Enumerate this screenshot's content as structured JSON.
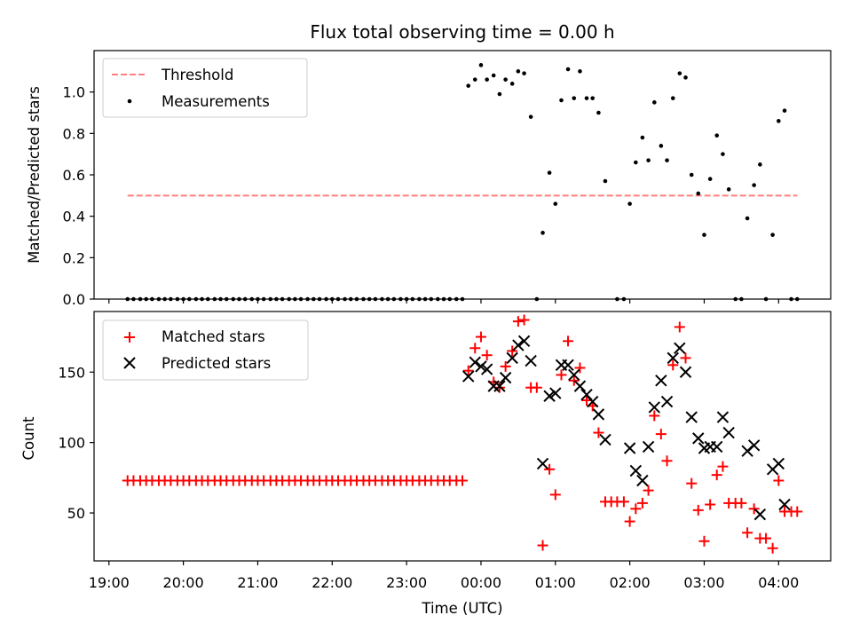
{
  "chart_data": [
    {
      "type": "scatter",
      "title": "Flux total observing time = 0.00 h",
      "xlabel": "",
      "ylabel": "Matched/Predicted stars",
      "ylim": [
        0,
        1.2
      ],
      "yticks": [
        0.0,
        0.2,
        0.4,
        0.6,
        0.8,
        1.0
      ],
      "ytick_labels": [
        "0.0",
        "0.2",
        "0.4",
        "0.6",
        "0.8",
        "1.0"
      ],
      "xlim_hours": [
        18.8,
        28.7
      ],
      "legend": "top-left",
      "legend_entries": [
        "Threshold",
        "Measurements"
      ],
      "threshold": {
        "name": "Threshold",
        "y": 0.5,
        "x_range_hours": [
          19.25,
          28.25
        ],
        "color": "#ff7f7f",
        "style": "dashed"
      },
      "series": [
        {
          "name": "Measurements",
          "color": "#000000",
          "marker": "dot",
          "points": [
            [
              19.25,
              0
            ],
            [
              19.33,
              0
            ],
            [
              19.42,
              0
            ],
            [
              19.5,
              0
            ],
            [
              19.58,
              0
            ],
            [
              19.67,
              0
            ],
            [
              19.75,
              0
            ],
            [
              19.83,
              0
            ],
            [
              19.92,
              0
            ],
            [
              20.0,
              0
            ],
            [
              20.08,
              0
            ],
            [
              20.17,
              0
            ],
            [
              20.25,
              0
            ],
            [
              20.33,
              0
            ],
            [
              20.42,
              0
            ],
            [
              20.5,
              0
            ],
            [
              20.58,
              0
            ],
            [
              20.67,
              0
            ],
            [
              20.75,
              0
            ],
            [
              20.83,
              0
            ],
            [
              20.92,
              0
            ],
            [
              21.0,
              0
            ],
            [
              21.08,
              0
            ],
            [
              21.17,
              0
            ],
            [
              21.25,
              0
            ],
            [
              21.33,
              0
            ],
            [
              21.42,
              0
            ],
            [
              21.5,
              0
            ],
            [
              21.58,
              0
            ],
            [
              21.67,
              0
            ],
            [
              21.75,
              0
            ],
            [
              21.83,
              0
            ],
            [
              21.92,
              0
            ],
            [
              22.0,
              0
            ],
            [
              22.08,
              0
            ],
            [
              22.17,
              0
            ],
            [
              22.25,
              0
            ],
            [
              22.33,
              0
            ],
            [
              22.42,
              0
            ],
            [
              22.5,
              0
            ],
            [
              22.58,
              0
            ],
            [
              22.67,
              0
            ],
            [
              22.75,
              0
            ],
            [
              22.83,
              0
            ],
            [
              22.92,
              0
            ],
            [
              23.0,
              0
            ],
            [
              23.08,
              0
            ],
            [
              23.17,
              0
            ],
            [
              23.25,
              0
            ],
            [
              23.33,
              0
            ],
            [
              23.42,
              0
            ],
            [
              23.5,
              0
            ],
            [
              23.58,
              0
            ],
            [
              23.67,
              0
            ],
            [
              23.75,
              0
            ],
            [
              23.83,
              1.03
            ],
            [
              23.92,
              1.06
            ],
            [
              24.0,
              1.13
            ],
            [
              24.08,
              1.06
            ],
            [
              24.17,
              1.08
            ],
            [
              24.25,
              0.99
            ],
            [
              24.33,
              1.06
            ],
            [
              24.42,
              1.04
            ],
            [
              24.5,
              1.1
            ],
            [
              24.58,
              1.09
            ],
            [
              24.67,
              0.88
            ],
            [
              24.75,
              0.0
            ],
            [
              24.83,
              0.32
            ],
            [
              24.92,
              0.61
            ],
            [
              25.0,
              0.46
            ],
            [
              25.08,
              0.96
            ],
            [
              25.17,
              1.11
            ],
            [
              25.25,
              0.97
            ],
            [
              25.33,
              1.1
            ],
            [
              25.42,
              0.97
            ],
            [
              25.5,
              0.97
            ],
            [
              25.58,
              0.9
            ],
            [
              25.67,
              0.57
            ],
            [
              25.83,
              0.0
            ],
            [
              25.92,
              0.0
            ],
            [
              26.0,
              0.46
            ],
            [
              26.08,
              0.66
            ],
            [
              26.17,
              0.78
            ],
            [
              26.25,
              0.67
            ],
            [
              26.33,
              0.95
            ],
            [
              26.42,
              0.74
            ],
            [
              26.5,
              0.67
            ],
            [
              26.58,
              0.97
            ],
            [
              26.67,
              1.09
            ],
            [
              26.75,
              1.07
            ],
            [
              26.83,
              0.6
            ],
            [
              26.92,
              0.51
            ],
            [
              27.0,
              0.31
            ],
            [
              27.08,
              0.58
            ],
            [
              27.17,
              0.79
            ],
            [
              27.25,
              0.7
            ],
            [
              27.33,
              0.53
            ],
            [
              27.42,
              0.0
            ],
            [
              27.5,
              0.0
            ],
            [
              27.58,
              0.39
            ],
            [
              27.67,
              0.55
            ],
            [
              27.75,
              0.65
            ],
            [
              27.83,
              0.0
            ],
            [
              27.92,
              0.31
            ],
            [
              28.0,
              0.86
            ],
            [
              28.08,
              0.91
            ],
            [
              28.17,
              0.0
            ],
            [
              28.25,
              0.0
            ]
          ]
        }
      ]
    },
    {
      "type": "scatter",
      "title": "",
      "xlabel": "Time (UTC)",
      "ylabel": "Count",
      "ylim": [
        16,
        193
      ],
      "yticks": [
        50,
        100,
        150
      ],
      "ytick_labels": [
        "50",
        "100",
        "150"
      ],
      "xlim_hours": [
        18.8,
        28.7
      ],
      "xticks_hours": [
        19,
        20,
        21,
        22,
        23,
        24,
        25,
        26,
        27,
        28
      ],
      "xtick_labels": [
        "19:00",
        "20:00",
        "21:00",
        "22:00",
        "23:00",
        "00:00",
        "01:00",
        "02:00",
        "03:00",
        "04:00"
      ],
      "legend": "top-left",
      "legend_entries": [
        "Matched stars",
        "Predicted stars"
      ],
      "series": [
        {
          "name": "Matched stars",
          "color": "#ff0000",
          "marker": "plus",
          "points": [
            [
              19.25,
              73
            ],
            [
              19.33,
              73
            ],
            [
              19.42,
              73
            ],
            [
              19.5,
              73
            ],
            [
              19.58,
              73
            ],
            [
              19.67,
              73
            ],
            [
              19.75,
              73
            ],
            [
              19.83,
              73
            ],
            [
              19.92,
              73
            ],
            [
              20.0,
              73
            ],
            [
              20.08,
              73
            ],
            [
              20.17,
              73
            ],
            [
              20.25,
              73
            ],
            [
              20.33,
              73
            ],
            [
              20.42,
              73
            ],
            [
              20.5,
              73
            ],
            [
              20.58,
              73
            ],
            [
              20.67,
              73
            ],
            [
              20.75,
              73
            ],
            [
              20.83,
              73
            ],
            [
              20.92,
              73
            ],
            [
              21.0,
              73
            ],
            [
              21.08,
              73
            ],
            [
              21.17,
              73
            ],
            [
              21.25,
              73
            ],
            [
              21.33,
              73
            ],
            [
              21.42,
              73
            ],
            [
              21.5,
              73
            ],
            [
              21.58,
              73
            ],
            [
              21.67,
              73
            ],
            [
              21.75,
              73
            ],
            [
              21.83,
              73
            ],
            [
              21.92,
              73
            ],
            [
              22.0,
              73
            ],
            [
              22.08,
              73
            ],
            [
              22.17,
              73
            ],
            [
              22.25,
              73
            ],
            [
              22.33,
              73
            ],
            [
              22.42,
              73
            ],
            [
              22.5,
              73
            ],
            [
              22.58,
              73
            ],
            [
              22.67,
              73
            ],
            [
              22.75,
              73
            ],
            [
              22.83,
              73
            ],
            [
              22.92,
              73
            ],
            [
              23.0,
              73
            ],
            [
              23.08,
              73
            ],
            [
              23.17,
              73
            ],
            [
              23.25,
              73
            ],
            [
              23.33,
              73
            ],
            [
              23.42,
              73
            ],
            [
              23.5,
              73
            ],
            [
              23.58,
              73
            ],
            [
              23.67,
              73
            ],
            [
              23.75,
              73
            ],
            [
              23.83,
              151
            ],
            [
              23.92,
              167
            ],
            [
              24.0,
              175
            ],
            [
              24.08,
              162
            ],
            [
              24.17,
              143
            ],
            [
              24.25,
              139
            ],
            [
              24.33,
              154
            ],
            [
              24.42,
              165
            ],
            [
              24.5,
              186
            ],
            [
              24.58,
              187
            ],
            [
              24.67,
              139
            ],
            [
              24.75,
              139
            ],
            [
              24.83,
              27
            ],
            [
              24.92,
              81
            ],
            [
              25.0,
              63
            ],
            [
              25.08,
              148
            ],
            [
              25.17,
              172
            ],
            [
              25.25,
              144
            ],
            [
              25.33,
              153
            ],
            [
              25.42,
              130
            ],
            [
              25.5,
              126
            ],
            [
              25.58,
              107
            ],
            [
              25.67,
              58
            ],
            [
              25.75,
              58
            ],
            [
              25.83,
              58
            ],
            [
              25.92,
              58
            ],
            [
              26.0,
              44
            ],
            [
              26.08,
              53
            ],
            [
              26.17,
              57
            ],
            [
              26.25,
              66
            ],
            [
              26.33,
              119
            ],
            [
              26.42,
              106
            ],
            [
              26.5,
              87
            ],
            [
              26.58,
              155
            ],
            [
              26.67,
              182
            ],
            [
              26.75,
              160
            ],
            [
              26.83,
              71
            ],
            [
              26.92,
              52
            ],
            [
              27.0,
              30
            ],
            [
              27.08,
              56
            ],
            [
              27.17,
              77
            ],
            [
              27.25,
              83
            ],
            [
              27.33,
              57
            ],
            [
              27.42,
              57
            ],
            [
              27.5,
              57
            ],
            [
              27.58,
              36
            ],
            [
              27.67,
              53
            ],
            [
              27.75,
              32
            ],
            [
              27.83,
              32
            ],
            [
              27.92,
              25
            ],
            [
              28.0,
              73
            ],
            [
              28.08,
              51
            ],
            [
              28.17,
              51
            ],
            [
              28.25,
              51
            ]
          ]
        },
        {
          "name": "Predicted stars",
          "color": "#000000",
          "marker": "x",
          "points": [
            [
              23.83,
              147
            ],
            [
              23.92,
              157
            ],
            [
              24.0,
              154
            ],
            [
              24.08,
              152
            ],
            [
              24.17,
              140
            ],
            [
              24.25,
              140
            ],
            [
              24.33,
              146
            ],
            [
              24.42,
              160
            ],
            [
              24.5,
              169
            ],
            [
              24.58,
              172
            ],
            [
              24.67,
              158
            ],
            [
              24.83,
              85
            ],
            [
              24.92,
              133
            ],
            [
              25.0,
              135
            ],
            [
              25.08,
              155
            ],
            [
              25.17,
              155
            ],
            [
              25.25,
              148
            ],
            [
              25.33,
              140
            ],
            [
              25.42,
              134
            ],
            [
              25.5,
              129
            ],
            [
              25.58,
              120
            ],
            [
              25.67,
              102
            ],
            [
              26.0,
              96
            ],
            [
              26.08,
              80
            ],
            [
              26.17,
              73
            ],
            [
              26.25,
              97
            ],
            [
              26.33,
              125
            ],
            [
              26.42,
              144
            ],
            [
              26.5,
              129
            ],
            [
              26.58,
              160
            ],
            [
              26.67,
              167
            ],
            [
              26.75,
              150
            ],
            [
              26.83,
              118
            ],
            [
              26.92,
              103
            ],
            [
              27.0,
              96
            ],
            [
              27.08,
              97
            ],
            [
              27.17,
              97
            ],
            [
              27.25,
              118
            ],
            [
              27.33,
              107
            ],
            [
              27.58,
              94
            ],
            [
              27.67,
              98
            ],
            [
              27.75,
              49
            ],
            [
              27.92,
              81
            ],
            [
              28.0,
              85
            ],
            [
              28.08,
              56
            ]
          ]
        }
      ]
    }
  ]
}
